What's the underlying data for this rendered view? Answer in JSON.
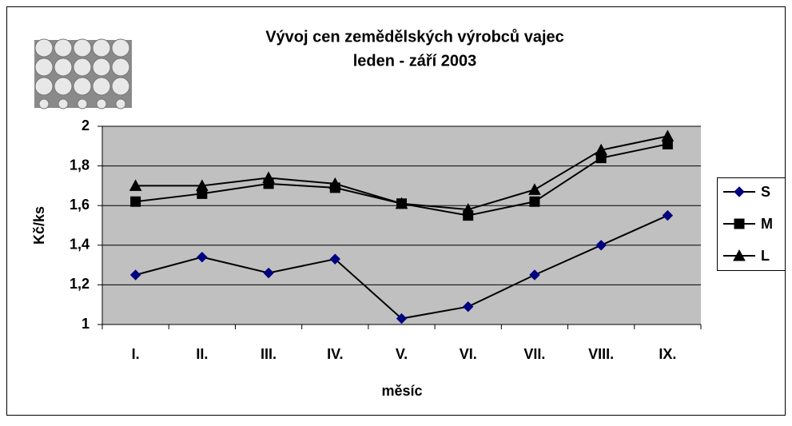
{
  "chart_data": {
    "type": "line",
    "title": "Vývoj cen zemědělských výrobců vajec",
    "subtitle": "leden - září 2003",
    "y_label": "Kč/ks",
    "x_label": "měsíc",
    "categories": [
      "I.",
      "II.",
      "III.",
      "IV.",
      "V.",
      "VI.",
      "VII.",
      "VIII.",
      "IX."
    ],
    "series": [
      {
        "name": "S",
        "color": "#000080",
        "marker": "diamond",
        "values": [
          1.25,
          1.34,
          1.26,
          1.33,
          1.03,
          1.09,
          1.25,
          1.4,
          1.55
        ]
      },
      {
        "name": "M",
        "color": "#000000",
        "marker": "square",
        "values": [
          1.62,
          1.66,
          1.71,
          1.69,
          1.61,
          1.55,
          1.62,
          1.84,
          1.91
        ]
      },
      {
        "name": "L",
        "color": "#000000",
        "marker": "triangle",
        "values": [
          1.7,
          1.7,
          1.74,
          1.71,
          1.61,
          1.58,
          1.68,
          1.88,
          1.95
        ]
      }
    ],
    "ylim": [
      1,
      2
    ],
    "yticks": [
      1,
      {
        "value": 1.2,
        "label": "1,2"
      },
      {
        "value": 1.4,
        "label": "1,4"
      },
      {
        "value": 1.6,
        "label": "1,6"
      },
      {
        "value": 1.8,
        "label": "1,8"
      },
      2
    ],
    "grid": true,
    "legend": "right"
  }
}
